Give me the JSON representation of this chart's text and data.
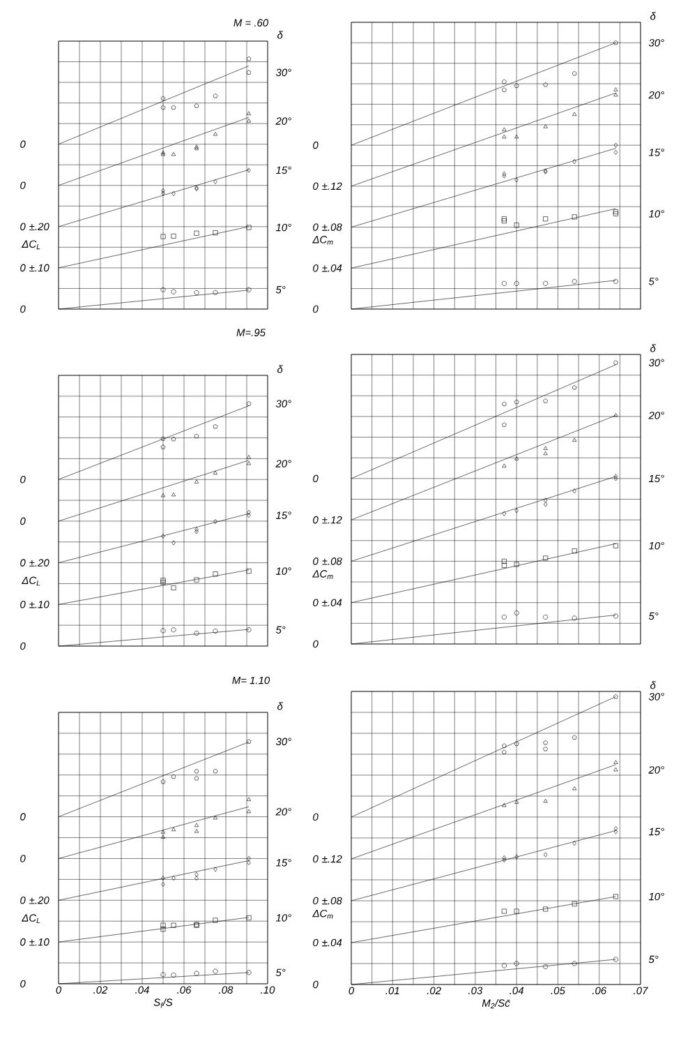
{
  "chart_data": [
    {
      "type": "scatter",
      "title": "M = .60",
      "ylabel": "ΔC$_{L}$",
      "legend_title": "δ",
      "legend": "right",
      "xlim": [
        0,
        0.1
      ],
      "ylim": [
        0,
        0.65
      ],
      "grid": true,
      "tick_labels": "y",
      "xticks": [
        0,
        0.01,
        0.02,
        0.03,
        0.04,
        0.05,
        0.06,
        0.07,
        0.08,
        0.09,
        0.1
      ],
      "yticks": [
        0,
        {
          "value": 0.05,
          "label": null
        },
        {
          "value": 0.1,
          "label": "0 ±.10"
        },
        {
          "value": 0.15,
          "label": null
        },
        {
          "value": 0.2,
          "label": "0 ±.20"
        },
        {
          "value": 0.25,
          "label": null
        },
        {
          "value": 0.3,
          "label": "0"
        },
        {
          "value": 0.35,
          "label": null
        },
        {
          "value": 0.4,
          "label": "0"
        },
        {
          "value": 0.45,
          "label": null
        },
        {
          "value": 0.5,
          "label": null
        },
        {
          "value": 0.55,
          "label": null
        },
        {
          "value": 0.6,
          "label": null
        },
        {
          "value": 0.65,
          "label": null
        }
      ],
      "series": [
        {
          "name": "5°",
          "color": "#000000",
          "marker": "circle",
          "x": [
            0.05,
            0.055,
            0.066,
            0.075,
            0.091
          ],
          "values": [
            0.047,
            0.042,
            0.04,
            0.04,
            0.047
          ]
        },
        {
          "type": "line",
          "color": "#000000",
          "marker": "none",
          "x": [
            0,
            0.091
          ],
          "values": [
            0,
            0.046
          ]
        },
        {
          "name": "10°",
          "color": "#000000",
          "marker": "square",
          "x": [
            0.05,
            0.055,
            0.066,
            0.075,
            0.091
          ],
          "values": [
            0.176,
            0.177,
            0.184,
            0.185,
            0.198
          ]
        },
        {
          "type": "line",
          "color": "#000000",
          "marker": "none",
          "x": [
            0,
            0.091
          ],
          "values": [
            0.1,
            0.2
          ]
        },
        {
          "name": "15°",
          "color": "#000000",
          "marker": "diamond",
          "x": [
            0.05,
            0.05,
            0.055,
            0.066,
            0.066,
            0.075,
            0.091
          ],
          "values": [
            0.287,
            0.281,
            0.28,
            0.292,
            0.294,
            0.309,
            0.337
          ]
        },
        {
          "type": "line",
          "color": "#000000",
          "marker": "none",
          "x": [
            0,
            0.091
          ],
          "values": [
            0.2,
            0.338
          ]
        },
        {
          "name": "20°",
          "color": "#000000",
          "marker": "triangle",
          "x": [
            0.05,
            0.05,
            0.055,
            0.066,
            0.066,
            0.075,
            0.091,
            0.091
          ],
          "values": [
            0.379,
            0.375,
            0.375,
            0.393,
            0.389,
            0.424,
            0.474,
            0.456
          ]
        },
        {
          "type": "line",
          "color": "#000000",
          "marker": "none",
          "x": [
            0,
            0.091
          ],
          "values": [
            0.3,
            0.465
          ]
        },
        {
          "name": "30°",
          "color": "#000000",
          "marker": "star",
          "x": [
            0.05,
            0.05,
            0.055,
            0.066,
            0.075,
            0.091,
            0.091
          ],
          "values": [
            0.511,
            0.489,
            0.489,
            0.493,
            0.517,
            0.607,
            0.574
          ]
        },
        {
          "type": "line",
          "color": "#000000",
          "marker": "none",
          "x": [
            0,
            0.091
          ],
          "values": [
            0.4,
            0.59
          ]
        }
      ]
    },
    {
      "type": "scatter",
      "ylabel": "ΔC$_{m}$",
      "legend_title": "δ",
      "xlim": [
        0,
        0.07
      ],
      "ylim": [
        0,
        0.28
      ],
      "grid": true,
      "tick_labels": "y",
      "xticks": [
        0,
        0.005,
        0.01,
        0.015,
        0.02,
        0.025,
        0.03,
        0.035,
        0.04,
        0.045,
        0.05,
        0.055,
        0.06,
        0.065,
        0.07
      ],
      "yticks": [
        0,
        {
          "value": 0.02,
          "label": null
        },
        {
          "value": 0.04,
          "label": "0 ±.04"
        },
        {
          "value": 0.06,
          "label": null
        },
        {
          "value": 0.08,
          "label": "0 ±.08"
        },
        {
          "value": 0.1,
          "label": null
        },
        {
          "value": 0.12,
          "label": "0 ±.12"
        },
        {
          "value": 0.14,
          "label": null
        },
        {
          "value": 0.16,
          "label": "0"
        },
        {
          "value": 0.18,
          "label": null
        },
        {
          "value": 0.2,
          "label": null
        },
        {
          "value": 0.22,
          "label": null
        },
        {
          "value": 0.24,
          "label": null
        },
        {
          "value": 0.26,
          "label": null
        },
        {
          "value": 0.28,
          "label": null
        }
      ],
      "legend": "right",
      "series": [
        {
          "name": "5°",
          "color": "#000000",
          "marker": "circle",
          "x": [
            0.037,
            0.04,
            0.047,
            0.054,
            0.064
          ],
          "values": [
            0.025,
            0.025,
            0.025,
            0.027,
            0.027
          ]
        },
        {
          "type": "line",
          "color": "#000000",
          "marker": "none",
          "x": [
            0,
            0.064
          ],
          "values": [
            0,
            0.028
          ]
        },
        {
          "name": "10°",
          "color": "#000000",
          "marker": "square",
          "x": [
            0.037,
            0.037,
            0.04,
            0.047,
            0.054,
            0.064,
            0.064
          ],
          "values": [
            0.088,
            0.086,
            0.082,
            0.088,
            0.09,
            0.095,
            0.093
          ]
        },
        {
          "type": "line",
          "color": "#000000",
          "marker": "none",
          "x": [
            0,
            0.064
          ],
          "values": [
            0.04,
            0.098
          ]
        },
        {
          "name": "15°",
          "color": "#000000",
          "marker": "diamond",
          "x": [
            0.037,
            0.037,
            0.04,
            0.047,
            0.047,
            0.054,
            0.064,
            0.064
          ],
          "values": [
            0.132,
            0.13,
            0.126,
            0.135,
            0.134,
            0.144,
            0.16,
            0.153
          ]
        },
        {
          "type": "line",
          "color": "#000000",
          "marker": "none",
          "x": [
            0,
            0.064
          ],
          "values": [
            0.08,
            0.157
          ]
        },
        {
          "name": "20°",
          "color": "#000000",
          "marker": "triangle",
          "x": [
            0.037,
            0.037,
            0.04,
            0.047,
            0.054,
            0.064,
            0.064
          ],
          "values": [
            0.175,
            0.168,
            0.168,
            0.178,
            0.19,
            0.214,
            0.209
          ]
        },
        {
          "type": "line",
          "color": "#000000",
          "marker": "none",
          "x": [
            0,
            0.064
          ],
          "values": [
            0.12,
            0.211
          ]
        },
        {
          "name": "30°",
          "color": "#000000",
          "marker": "star",
          "x": [
            0.037,
            0.037,
            0.04,
            0.047,
            0.054,
            0.064
          ],
          "values": [
            0.222,
            0.214,
            0.218,
            0.219,
            0.23,
            0.26
          ]
        },
        {
          "type": "line",
          "color": "#000000",
          "marker": "none",
          "x": [
            0,
            0.064
          ],
          "values": [
            0.16,
            0.26
          ]
        }
      ]
    },
    {
      "type": "scatter",
      "title": "M=.95",
      "ylabel": "ΔC$_{L}$",
      "legend_title": "δ",
      "legend": "right",
      "xlim": [
        0,
        0.1
      ],
      "ylim": [
        0,
        0.65
      ],
      "grid": true,
      "tick_labels": "y",
      "xticks": [
        0,
        0.01,
        0.02,
        0.03,
        0.04,
        0.05,
        0.06,
        0.07,
        0.08,
        0.09,
        0.1
      ],
      "yticks": [
        0,
        {
          "value": 0.05,
          "label": null
        },
        {
          "value": 0.1,
          "label": "0 ±.10"
        },
        {
          "value": 0.15,
          "label": null
        },
        {
          "value": 0.2,
          "label": "0 ±.20"
        },
        {
          "value": 0.25,
          "label": null
        },
        {
          "value": 0.3,
          "label": "0"
        },
        {
          "value": 0.35,
          "label": null
        },
        {
          "value": 0.4,
          "label": "0"
        },
        {
          "value": 0.45,
          "label": null
        },
        {
          "value": 0.5,
          "label": null
        },
        {
          "value": 0.55,
          "label": null
        },
        {
          "value": 0.6,
          "label": null
        },
        {
          "value": 0.65,
          "label": null
        }
      ],
      "series": [
        {
          "name": "5°",
          "color": "#000000",
          "marker": "circle",
          "x": [
            0.05,
            0.055,
            0.066,
            0.075,
            0.091
          ],
          "values": [
            0.037,
            0.039,
            0.031,
            0.036,
            0.039
          ]
        },
        {
          "type": "line",
          "color": "#000000",
          "marker": "none",
          "x": [
            0,
            0.091
          ],
          "values": [
            0,
            0.04
          ]
        },
        {
          "name": "10°",
          "color": "#000000",
          "marker": "square",
          "x": [
            0.05,
            0.05,
            0.055,
            0.066,
            0.075,
            0.091
          ],
          "values": [
            0.158,
            0.153,
            0.14,
            0.159,
            0.173,
            0.18
          ]
        },
        {
          "type": "line",
          "color": "#000000",
          "marker": "none",
          "x": [
            0,
            0.091
          ],
          "values": [
            0.1,
            0.183
          ]
        },
        {
          "name": "15°",
          "color": "#000000",
          "marker": "diamond",
          "x": [
            0.05,
            0.055,
            0.066,
            0.066,
            0.075,
            0.091,
            0.091
          ],
          "values": [
            0.264,
            0.248,
            0.28,
            0.275,
            0.299,
            0.321,
            0.314
          ]
        },
        {
          "type": "line",
          "color": "#000000",
          "marker": "none",
          "x": [
            0,
            0.091
          ],
          "values": [
            0.2,
            0.318
          ]
        },
        {
          "name": "20°",
          "color": "#000000",
          "marker": "triangle",
          "x": [
            0.05,
            0.055,
            0.066,
            0.075,
            0.091,
            0.091
          ],
          "values": [
            0.361,
            0.363,
            0.394,
            0.415,
            0.453,
            0.438
          ]
        },
        {
          "type": "line",
          "color": "#000000",
          "marker": "none",
          "x": [
            0,
            0.091
          ],
          "values": [
            0.3,
            0.446
          ]
        },
        {
          "name": "30°",
          "color": "#000000",
          "marker": "star",
          "x": [
            0.05,
            0.05,
            0.055,
            0.066,
            0.075,
            0.091
          ],
          "values": [
            0.498,
            0.478,
            0.497,
            0.504,
            0.527,
            0.582
          ]
        },
        {
          "type": "line",
          "color": "#000000",
          "marker": "none",
          "x": [
            0,
            0.091
          ],
          "values": [
            0.4,
            0.577
          ]
        }
      ]
    },
    {
      "type": "scatter",
      "ylabel": "ΔC$_{m}$",
      "legend_title": "δ",
      "xlim": [
        0,
        0.07
      ],
      "ylim": [
        0,
        0.28
      ],
      "grid": true,
      "tick_labels": "y",
      "xticks": [
        0,
        0.005,
        0.01,
        0.015,
        0.02,
        0.025,
        0.03,
        0.035,
        0.04,
        0.045,
        0.05,
        0.055,
        0.06,
        0.065,
        0.07
      ],
      "yticks": [
        0,
        {
          "value": 0.02,
          "label": null
        },
        {
          "value": 0.04,
          "label": "0 ±.04"
        },
        {
          "value": 0.06,
          "label": null
        },
        {
          "value": 0.08,
          "label": "0 ±.08"
        },
        {
          "value": 0.1,
          "label": null
        },
        {
          "value": 0.12,
          "label": "0 ±.12"
        },
        {
          "value": 0.14,
          "label": null
        },
        {
          "value": 0.16,
          "label": "0"
        },
        {
          "value": 0.18,
          "label": null
        },
        {
          "value": 0.2,
          "label": null
        },
        {
          "value": 0.22,
          "label": null
        },
        {
          "value": 0.24,
          "label": null
        },
        {
          "value": 0.26,
          "label": null
        },
        {
          "value": 0.28,
          "label": null
        }
      ],
      "legend": "right",
      "series": [
        {
          "name": "5°",
          "color": "#000000",
          "marker": "circle",
          "x": [
            0.037,
            0.04,
            0.047,
            0.054,
            0.064
          ],
          "values": [
            0.026,
            0.03,
            0.026,
            0.025,
            0.027
          ]
        },
        {
          "type": "line",
          "color": "#000000",
          "marker": "none",
          "x": [
            0,
            0.064
          ],
          "values": [
            0,
            0.028
          ]
        },
        {
          "name": "10°",
          "color": "#000000",
          "marker": "square",
          "x": [
            0.037,
            0.037,
            0.04,
            0.047,
            0.054,
            0.064
          ],
          "values": [
            0.08,
            0.076,
            0.077,
            0.083,
            0.09,
            0.095
          ]
        },
        {
          "type": "line",
          "color": "#000000",
          "marker": "none",
          "x": [
            0,
            0.064
          ],
          "values": [
            0.04,
            0.097
          ]
        },
        {
          "name": "15°",
          "color": "#000000",
          "marker": "diamond",
          "x": [
            0.037,
            0.04,
            0.047,
            0.047,
            0.054,
            0.064,
            0.064
          ],
          "values": [
            0.126,
            0.129,
            0.139,
            0.135,
            0.148,
            0.162,
            0.16
          ]
        },
        {
          "type": "line",
          "color": "#000000",
          "marker": "none",
          "x": [
            0,
            0.064
          ],
          "values": [
            0.08,
            0.162
          ]
        },
        {
          "name": "20°",
          "color": "#000000",
          "marker": "triangle",
          "x": [
            0.037,
            0.04,
            0.047,
            0.047,
            0.054,
            0.064
          ],
          "values": [
            0.172,
            0.179,
            0.189,
            0.184,
            0.197,
            0.221
          ]
        },
        {
          "type": "line",
          "color": "#000000",
          "marker": "none",
          "x": [
            0,
            0.064
          ],
          "values": [
            0.12,
            0.221
          ]
        },
        {
          "name": "30°",
          "color": "#000000",
          "marker": "star",
          "x": [
            0.037,
            0.037,
            0.04,
            0.047,
            0.054,
            0.064
          ],
          "values": [
            0.232,
            0.212,
            0.234,
            0.235,
            0.248,
            0.272
          ]
        },
        {
          "type": "line",
          "color": "#000000",
          "marker": "none",
          "x": [
            0,
            0.064
          ],
          "values": [
            0.16,
            0.27
          ]
        }
      ]
    },
    {
      "type": "scatter",
      "title": "M= 1.10",
      "xlabel": "S$_{f}$/S",
      "ylabel": "ΔC$_{L}$",
      "legend_title": "δ",
      "legend": "right",
      "xlim": [
        0,
        0.1
      ],
      "ylim": [
        0,
        0.65
      ],
      "grid": true,
      "xticks": [
        0,
        {
          "value": 0.01,
          "label": null
        },
        {
          "value": 0.02,
          "label": ".02"
        },
        {
          "value": 0.03,
          "label": null
        },
        {
          "value": 0.04,
          "label": ".04"
        },
        {
          "value": 0.05,
          "label": null
        },
        {
          "value": 0.06,
          "label": ".06"
        },
        {
          "value": 0.07,
          "label": null
        },
        {
          "value": 0.08,
          "label": ".08"
        },
        {
          "value": 0.09,
          "label": null
        },
        {
          "value": 0.1,
          "label": ".10"
        }
      ],
      "yticks": [
        0,
        {
          "value": 0.05,
          "label": null
        },
        {
          "value": 0.1,
          "label": "0 ±.10"
        },
        {
          "value": 0.15,
          "label": null
        },
        {
          "value": 0.2,
          "label": "0 ±.20"
        },
        {
          "value": 0.25,
          "label": null
        },
        {
          "value": 0.3,
          "label": "0"
        },
        {
          "value": 0.35,
          "label": null
        },
        {
          "value": 0.4,
          "label": "0"
        },
        {
          "value": 0.45,
          "label": null
        },
        {
          "value": 0.5,
          "label": null
        },
        {
          "value": 0.55,
          "label": null
        },
        {
          "value": 0.6,
          "label": null
        },
        {
          "value": 0.65,
          "label": null
        }
      ],
      "series": [
        {
          "name": "5°",
          "color": "#000000",
          "marker": "circle",
          "x": [
            0.05,
            0.055,
            0.066,
            0.075,
            0.091
          ],
          "values": [
            0.022,
            0.021,
            0.025,
            0.03,
            0.027
          ]
        },
        {
          "type": "line",
          "color": "#000000",
          "marker": "none",
          "x": [
            0,
            0.091
          ],
          "values": [
            0,
            0.027
          ]
        },
        {
          "name": "10°",
          "color": "#000000",
          "marker": "square",
          "x": [
            0.05,
            0.05,
            0.055,
            0.066,
            0.066,
            0.075,
            0.091
          ],
          "values": [
            0.14,
            0.131,
            0.14,
            0.142,
            0.14,
            0.152,
            0.158
          ]
        },
        {
          "type": "line",
          "color": "#000000",
          "marker": "none",
          "x": [
            0,
            0.091
          ],
          "values": [
            0.1,
            0.159
          ]
        },
        {
          "name": "15°",
          "color": "#000000",
          "marker": "diamond",
          "x": [
            0.05,
            0.05,
            0.055,
            0.066,
            0.066,
            0.075,
            0.091,
            0.091
          ],
          "values": [
            0.253,
            0.238,
            0.253,
            0.262,
            0.253,
            0.274,
            0.3,
            0.29
          ]
        },
        {
          "type": "line",
          "color": "#000000",
          "marker": "none",
          "x": [
            0,
            0.091
          ],
          "values": [
            0.2,
            0.295
          ]
        },
        {
          "name": "20°",
          "color": "#000000",
          "marker": "triangle",
          "x": [
            0.05,
            0.05,
            0.055,
            0.066,
            0.066,
            0.075,
            0.091,
            0.091
          ],
          "values": [
            0.363,
            0.351,
            0.369,
            0.379,
            0.365,
            0.397,
            0.441,
            0.412
          ]
        },
        {
          "type": "line",
          "color": "#000000",
          "marker": "none",
          "x": [
            0,
            0.091
          ],
          "values": [
            0.3,
            0.424
          ]
        },
        {
          "name": "30°",
          "color": "#000000",
          "marker": "star",
          "x": [
            0.05,
            0.055,
            0.066,
            0.066,
            0.075,
            0.091
          ],
          "values": [
            0.484,
            0.496,
            0.509,
            0.492,
            0.509,
            0.58
          ]
        },
        {
          "type": "line",
          "color": "#000000",
          "marker": "none",
          "x": [
            0,
            0.091
          ],
          "values": [
            0.4,
            0.579
          ]
        }
      ]
    },
    {
      "type": "scatter",
      "xlabel": "M$_{2}$/Sc̄",
      "ylabel": "ΔC$_{m}$",
      "legend_title": "δ",
      "legend": "right",
      "xlim": [
        0,
        0.07
      ],
      "ylim": [
        0,
        0.28
      ],
      "grid": true,
      "xticks": [
        0,
        {
          "value": 0.005,
          "label": null
        },
        {
          "value": 0.01,
          "label": ".01"
        },
        {
          "value": 0.015,
          "label": null
        },
        {
          "value": 0.02,
          "label": ".02"
        },
        {
          "value": 0.025,
          "label": null
        },
        {
          "value": 0.03,
          "label": ".03"
        },
        {
          "value": 0.035,
          "label": null
        },
        {
          "value": 0.04,
          "label": ".04"
        },
        {
          "value": 0.045,
          "label": null
        },
        {
          "value": 0.05,
          "label": ".05"
        },
        {
          "value": 0.055,
          "label": null
        },
        {
          "value": 0.06,
          "label": ".06"
        },
        {
          "value": 0.065,
          "label": null
        },
        {
          "value": 0.07,
          "label": ".07"
        }
      ],
      "yticks": [
        0,
        {
          "value": 0.02,
          "label": null
        },
        {
          "value": 0.04,
          "label": "0 ±.04"
        },
        {
          "value": 0.06,
          "label": null
        },
        {
          "value": 0.08,
          "label": "0 ±.08"
        },
        {
          "value": 0.1,
          "label": null
        },
        {
          "value": 0.12,
          "label": "0 ±.12"
        },
        {
          "value": 0.14,
          "label": null
        },
        {
          "value": 0.16,
          "label": "0"
        },
        {
          "value": 0.18,
          "label": null
        },
        {
          "value": 0.2,
          "label": null
        },
        {
          "value": 0.22,
          "label": null
        },
        {
          "value": 0.24,
          "label": null
        },
        {
          "value": 0.26,
          "label": null
        },
        {
          "value": 0.28,
          "label": null
        }
      ],
      "series": [
        {
          "name": "5°",
          "color": "#000000",
          "marker": "circle",
          "x": [
            0.037,
            0.04,
            0.047,
            0.054,
            0.064
          ],
          "values": [
            0.018,
            0.02,
            0.017,
            0.02,
            0.024
          ]
        },
        {
          "type": "line",
          "color": "#000000",
          "marker": "none",
          "x": [
            0,
            0.064
          ],
          "values": [
            0,
            0.024
          ]
        },
        {
          "name": "10°",
          "color": "#000000",
          "marker": "square",
          "x": [
            0.037,
            0.04,
            0.047,
            0.054,
            0.064
          ],
          "values": [
            0.07,
            0.07,
            0.072,
            0.077,
            0.084
          ]
        },
        {
          "type": "line",
          "color": "#000000",
          "marker": "none",
          "x": [
            0,
            0.064
          ],
          "values": [
            0.04,
            0.084
          ]
        },
        {
          "name": "15°",
          "color": "#000000",
          "marker": "diamond",
          "x": [
            0.037,
            0.037,
            0.04,
            0.047,
            0.054,
            0.064,
            0.064
          ],
          "values": [
            0.121,
            0.119,
            0.122,
            0.124,
            0.135,
            0.149,
            0.146
          ]
        },
        {
          "type": "line",
          "color": "#000000",
          "marker": "none",
          "x": [
            0,
            0.064
          ],
          "values": [
            0.08,
            0.147
          ]
        },
        {
          "name": "20°",
          "color": "#000000",
          "marker": "triangle",
          "x": [
            0.037,
            0.04,
            0.047,
            0.054,
            0.064,
            0.064
          ],
          "values": [
            0.171,
            0.174,
            0.175,
            0.187,
            0.212,
            0.205
          ]
        },
        {
          "type": "line",
          "color": "#000000",
          "marker": "none",
          "x": [
            0,
            0.064
          ],
          "values": [
            0.12,
            0.21
          ]
        },
        {
          "name": "30°",
          "color": "#000000",
          "marker": "star",
          "x": [
            0.037,
            0.037,
            0.04,
            0.047,
            0.047,
            0.054,
            0.064
          ],
          "values": [
            0.228,
            0.222,
            0.23,
            0.231,
            0.225,
            0.236,
            0.275
          ]
        },
        {
          "type": "line",
          "color": "#000000",
          "marker": "none",
          "x": [
            0,
            0.064
          ],
          "values": [
            0.16,
            0.275
          ]
        }
      ]
    }
  ]
}
